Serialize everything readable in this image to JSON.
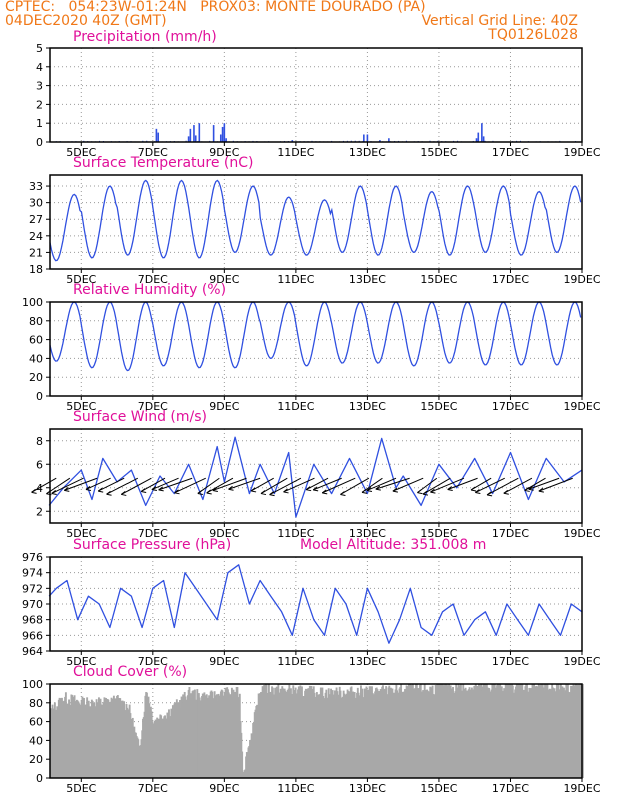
{
  "header": {
    "line1_left": "CPTEC:   054:23W-01:24N   PROX03: MONTE DOURADO (PA)",
    "line2_left": "04DEC2020 40Z (GMT)",
    "line2_right": "Vertical Grid Line: 40Z",
    "line3_right": "TQ0126L028"
  },
  "colors": {
    "series": "#3050e0",
    "cloud": "#a8a8a8",
    "title": "#e0109a",
    "header": "#f07818",
    "wind_vector": "#000000"
  },
  "x_axis": {
    "labels": [
      "5DEC",
      "7DEC",
      "9DEC",
      "11DEC",
      "13DEC",
      "15DEC",
      "17DEC",
      "19DEC"
    ],
    "label_days": [
      5,
      7,
      9,
      11,
      13,
      15,
      17,
      19
    ],
    "start_day": 4.125,
    "end_day": 19
  },
  "chart_data": [
    {
      "type": "bar",
      "title": "Precipitation (mm/h)",
      "ylim": [
        0,
        5
      ],
      "yticks": [
        0,
        1,
        2,
        3,
        4,
        5
      ],
      "series": [
        {
          "time_day": [
            7.1,
            7.15,
            8.0,
            8.05,
            8.15,
            8.2,
            8.3,
            8.7,
            8.9,
            8.95,
            9.0,
            9.05,
            10.9,
            12.9,
            13.0,
            13.35,
            13.6,
            16.05,
            16.1,
            16.2,
            16.25
          ],
          "values": [
            0.7,
            0.5,
            0.3,
            0.7,
            0.9,
            0.35,
            1.0,
            0.9,
            0.4,
            0.8,
            1.0,
            0.2,
            0.1,
            0.4,
            0.4,
            0.1,
            0.2,
            0.2,
            0.5,
            1.0,
            0.3
          ]
        }
      ],
      "grid": true
    },
    {
      "type": "line",
      "title": "Surface Temperature (nC)",
      "ylim": [
        18,
        35
      ],
      "yticks": [
        18,
        21,
        24,
        27,
        30,
        33
      ],
      "series": [
        {
          "daily_min": [
            19.5,
            20,
            20.5,
            20,
            20,
            21,
            20.5,
            20.5,
            21,
            20.5,
            21,
            20.5,
            21,
            20.5,
            21
          ],
          "daily_max": [
            31.5,
            33,
            34,
            34,
            34,
            33,
            31,
            30.5,
            33,
            33,
            32,
            33,
            33,
            32,
            33
          ]
        }
      ],
      "grid": true
    },
    {
      "type": "line",
      "title": "Relative Humidity (%)",
      "ylim": [
        0,
        100
      ],
      "yticks": [
        0,
        20,
        40,
        60,
        80,
        100
      ],
      "series": [
        {
          "daily_min": [
            37,
            30,
            27,
            32,
            30,
            30,
            40,
            32,
            35,
            35,
            32,
            35,
            33,
            33,
            33
          ],
          "daily_max": [
            100,
            100,
            100,
            100,
            100,
            100,
            100,
            100,
            100,
            100,
            100,
            100,
            100,
            100,
            100
          ]
        }
      ],
      "grid": true
    },
    {
      "type": "line",
      "title": "Surface Wind (m/s)",
      "ylim": [
        1,
        9
      ],
      "yticks": [
        2,
        4,
        6,
        8
      ],
      "series": [
        {
          "time_day": [
            4.1,
            4.5,
            5.0,
            5.3,
            5.6,
            6.0,
            6.4,
            6.8,
            7.2,
            7.6,
            8.0,
            8.4,
            8.8,
            9.0,
            9.3,
            9.7,
            10.0,
            10.4,
            10.8,
            11.0,
            11.5,
            12.0,
            12.5,
            13.0,
            13.4,
            13.8,
            14.0,
            14.5,
            15.0,
            15.5,
            16.0,
            16.5,
            17.0,
            17.5,
            18.0,
            18.5,
            19.0
          ],
          "values": [
            2.5,
            4.0,
            5.5,
            3.0,
            6.5,
            4.5,
            5.5,
            2.5,
            5.0,
            3.5,
            6.0,
            3.0,
            7.5,
            4.5,
            8.3,
            3.5,
            6.0,
            3.5,
            7.0,
            1.5,
            6.0,
            3.5,
            6.5,
            3.5,
            8.2,
            4.0,
            5.0,
            2.5,
            6.0,
            4.0,
            6.5,
            3.5,
            7.0,
            3.0,
            6.5,
            4.5,
            5.5
          ]
        }
      ],
      "grid": true
    },
    {
      "type": "line",
      "title": "Surface Pressure (hPa)",
      "annotation": "Model Altitude: 351.008 m",
      "ylim": [
        964,
        976
      ],
      "yticks": [
        964,
        966,
        968,
        970,
        972,
        974,
        976
      ],
      "series": [
        {
          "time_day": [
            4.1,
            4.3,
            4.6,
            4.9,
            5.2,
            5.5,
            5.8,
            6.1,
            6.4,
            6.7,
            7.0,
            7.3,
            7.6,
            7.9,
            8.2,
            8.5,
            8.8,
            9.1,
            9.4,
            9.7,
            10.0,
            10.3,
            10.6,
            10.9,
            11.2,
            11.5,
            11.8,
            12.1,
            12.4,
            12.7,
            13.0,
            13.3,
            13.6,
            13.9,
            14.2,
            14.5,
            14.8,
            15.1,
            15.4,
            15.7,
            16.0,
            16.3,
            16.6,
            16.9,
            17.2,
            17.5,
            17.8,
            18.1,
            18.4,
            18.7,
            19.0
          ],
          "values": [
            971,
            972,
            973,
            968,
            971,
            970,
            967,
            972,
            971,
            967,
            972,
            973,
            967,
            974,
            972,
            970,
            968,
            974,
            975,
            970,
            973,
            971,
            969,
            966,
            972,
            968,
            966,
            972,
            970,
            966,
            972,
            969,
            965,
            968,
            972,
            967,
            966,
            969,
            970,
            966,
            968,
            969,
            966,
            970,
            968,
            966,
            970,
            968,
            966,
            970,
            969
          ]
        }
      ],
      "grid": true
    },
    {
      "type": "area",
      "title": "Cloud Cover (%)",
      "ylim": [
        0,
        100
      ],
      "yticks": [
        0,
        20,
        40,
        60,
        80,
        100
      ],
      "series": [
        {
          "time_day": [
            4.1,
            4.5,
            5.0,
            5.5,
            6.0,
            6.3,
            6.6,
            6.8,
            7.0,
            7.5,
            8.0,
            8.5,
            9.0,
            9.4,
            9.5,
            10.0,
            11.0,
            12.0,
            13.0,
            14.0,
            15.0,
            16.0,
            17.0,
            18.0,
            19.0
          ],
          "values": [
            70,
            85,
            80,
            80,
            82,
            75,
            30,
            95,
            60,
            72,
            90,
            85,
            90,
            90,
            5,
            95,
            92,
            90,
            92,
            93,
            95,
            96,
            97,
            96,
            97
          ]
        }
      ],
      "grid": true
    }
  ]
}
